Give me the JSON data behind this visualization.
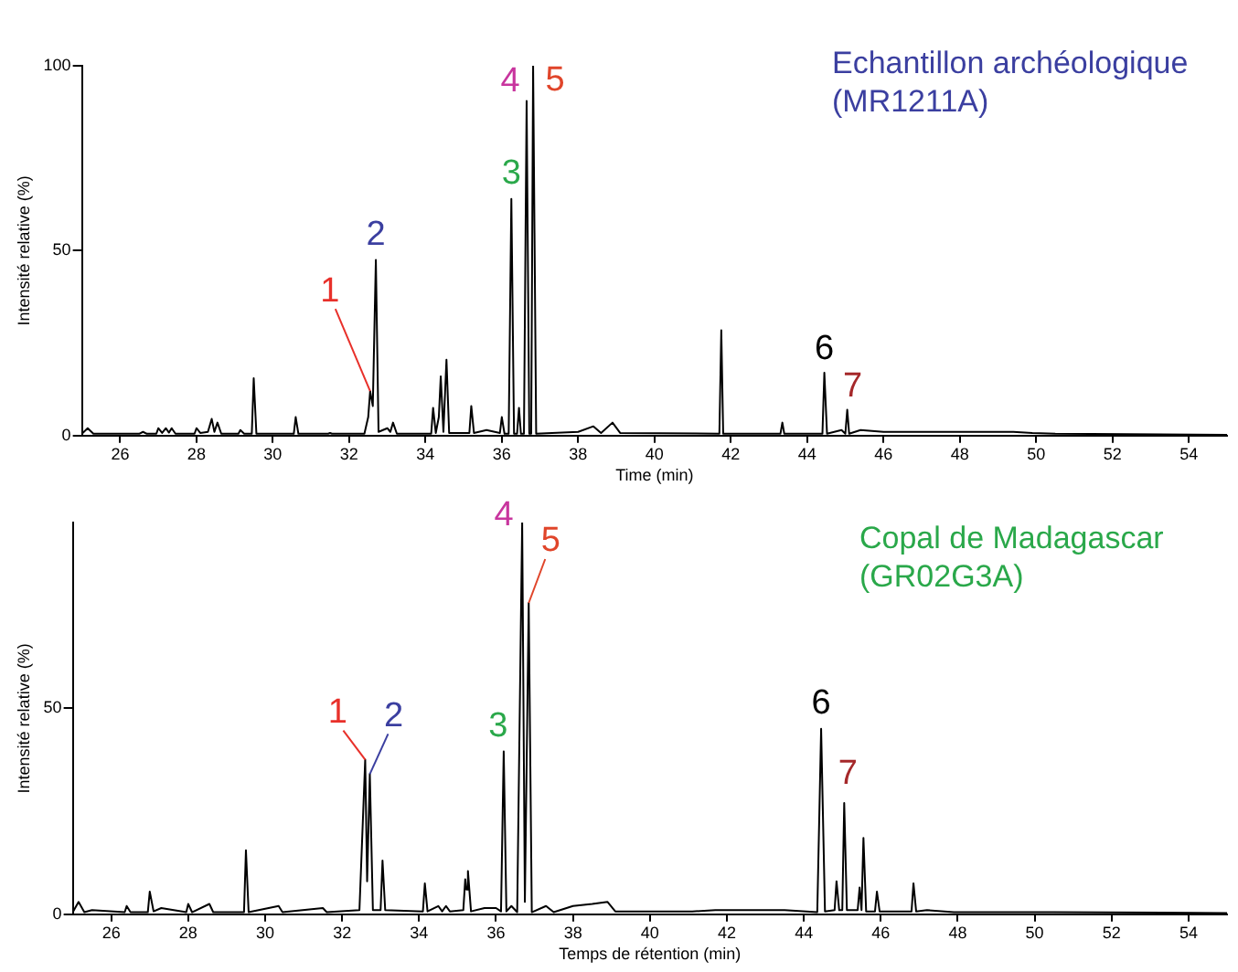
{
  "chart_data": [
    {
      "type": "line",
      "title": "Echantillon archéologique (MR1211A)",
      "xlabel": "Time (min)",
      "ylabel": "Intensité relative (%)",
      "xlim": [
        25,
        55
      ],
      "xticks": [
        26,
        28,
        30,
        32,
        34,
        36,
        38,
        40,
        42,
        44,
        46,
        48,
        50,
        52,
        54
      ],
      "ylim": [
        0,
        100
      ],
      "yticks": [
        0,
        50,
        100
      ],
      "x": [
        25.0,
        25.15,
        25.3,
        26.5,
        26.6,
        26.7,
        26.95,
        27.0,
        27.1,
        27.2,
        27.28,
        27.35,
        27.45,
        27.95,
        28.0,
        28.1,
        28.3,
        28.4,
        28.47,
        28.55,
        28.65,
        29.1,
        29.15,
        29.25,
        29.45,
        29.5,
        29.57,
        30.55,
        30.6,
        30.67,
        31.45,
        31.5,
        31.55,
        32.4,
        32.5,
        32.55,
        32.62,
        32.7,
        32.77,
        33.0,
        33.08,
        33.15,
        33.25,
        34.15,
        34.2,
        34.27,
        34.35,
        34.4,
        34.47,
        34.55,
        34.62,
        35.15,
        35.2,
        35.27,
        35.6,
        35.95,
        36.0,
        36.07,
        36.18,
        36.25,
        36.32,
        36.4,
        36.45,
        36.5,
        36.58,
        36.65,
        36.72,
        36.77,
        36.82,
        36.9,
        38.0,
        38.4,
        38.6,
        38.9,
        39.1,
        41.7,
        41.75,
        41.8,
        43.3,
        43.35,
        43.4,
        44.4,
        44.45,
        44.52,
        44.9,
        45.0,
        45.05,
        45.1,
        45.4,
        46.0,
        47.35,
        49.4,
        49.9,
        50.5,
        55.0
      ],
      "series": [
        {
          "color": "#000000",
          "values": [
            0.5,
            2,
            0.5,
            0.5,
            1,
            0.5,
            0.5,
            2,
            0.7,
            2,
            0.8,
            2,
            0.5,
            0.5,
            2,
            0.7,
            1,
            4.5,
            1,
            3.5,
            0.5,
            0.5,
            1.5,
            0.5,
            0.5,
            15.5,
            0.5,
            0.5,
            5,
            0.5,
            0.5,
            0.7,
            0.5,
            0.5,
            5,
            12,
            8,
            47.5,
            1,
            2,
            1,
            3.5,
            0.5,
            0.5,
            7.5,
            0.7,
            5,
            16,
            1,
            20.5,
            0.7,
            0.7,
            8,
            0.7,
            1.5,
            0.7,
            5,
            0.5,
            0.5,
            64,
            0.5,
            0.5,
            7.5,
            0.5,
            0.5,
            90.5,
            0.5,
            0.5,
            100,
            0.5,
            1,
            2.5,
            0.7,
            3.5,
            0.7,
            0.5,
            28.5,
            0.5,
            0.5,
            3.5,
            0.5,
            0.5,
            17,
            0.5,
            1.5,
            0.5,
            7,
            0.5,
            1.5,
            1,
            1,
            1,
            0.7,
            0.5,
            0.2
          ]
        }
      ],
      "annotations": [
        {
          "text": "1",
          "x": 32.55,
          "y": 12
        },
        {
          "text": "2",
          "x": 32.7,
          "y": 47.5
        },
        {
          "text": "3",
          "x": 36.25,
          "y": 64
        },
        {
          "text": "4",
          "x": 36.65,
          "y": 90.5
        },
        {
          "text": "5",
          "x": 36.82,
          "y": 100
        },
        {
          "text": "6",
          "x": 44.45,
          "y": 17
        },
        {
          "text": "7",
          "x": 45.05,
          "y": 7
        }
      ]
    },
    {
      "type": "line",
      "title": "Copal de Madagascar (GR02G3A)",
      "xlabel": "Temps de rétention (min)",
      "ylabel": "Intensité relative (%)",
      "xlim": [
        25,
        55
      ],
      "xticks": [
        26,
        28,
        30,
        32,
        34,
        36,
        38,
        40,
        42,
        44,
        46,
        48,
        50,
        52,
        54
      ],
      "ylim": [
        0,
        95
      ],
      "yticks": [
        0,
        50
      ],
      "x": [
        25.0,
        25.15,
        25.3,
        25.5,
        26.35,
        26.4,
        26.5,
        26.95,
        27.0,
        27.1,
        27.3,
        27.95,
        28.0,
        28.1,
        28.55,
        28.65,
        29.45,
        29.5,
        29.57,
        30.35,
        30.45,
        31.5,
        31.6,
        32.45,
        32.6,
        32.65,
        32.72,
        32.8,
        33.0,
        33.05,
        33.12,
        34.1,
        34.15,
        34.22,
        34.5,
        34.6,
        34.7,
        34.8,
        35.15,
        35.2,
        35.23,
        35.27,
        35.35,
        35.7,
        36.0,
        36.13,
        36.2,
        36.27,
        36.4,
        36.55,
        36.68,
        36.75,
        36.85,
        36.93,
        37.3,
        37.5,
        38.0,
        38.5,
        38.9,
        39.1,
        41.1,
        41.7,
        43.5,
        44.35,
        44.45,
        44.55,
        44.8,
        44.85,
        44.92,
        45.0,
        45.05,
        45.12,
        45.4,
        45.45,
        45.5,
        45.55,
        45.62,
        45.85,
        45.9,
        45.97,
        46.8,
        46.85,
        46.92,
        47.2,
        47.9,
        50.5,
        55.0
      ],
      "series": [
        {
          "color": "#000000",
          "values": [
            0.5,
            3,
            0.5,
            1,
            0.5,
            2,
            0.5,
            0.5,
            5.5,
            0.7,
            1.5,
            0.5,
            2.5,
            0.5,
            2.5,
            0.5,
            0.5,
            15.5,
            0.5,
            2,
            0.5,
            1.5,
            0.5,
            1,
            37.5,
            8,
            34,
            1,
            1,
            13,
            1,
            0.7,
            7.5,
            0.7,
            2,
            0.7,
            2,
            0.7,
            1,
            8.5,
            6,
            10.5,
            0.7,
            1.5,
            1.5,
            0.7,
            39.5,
            0.7,
            2,
            0.5,
            95,
            3,
            75.5,
            0.5,
            2,
            0.5,
            2,
            2.5,
            3,
            0.7,
            0.7,
            1,
            1,
            0.5,
            45,
            0.7,
            1,
            8,
            1,
            1,
            27,
            1,
            1,
            6.5,
            1,
            18.5,
            0.7,
            0.7,
            5.5,
            0.7,
            0.7,
            7.5,
            0.7,
            1,
            0.5,
            0.5,
            0.3
          ]
        }
      ],
      "annotations": [
        {
          "text": "1",
          "x": 32.6,
          "y": 37.5
        },
        {
          "text": "2",
          "x": 32.72,
          "y": 34
        },
        {
          "text": "3",
          "x": 36.2,
          "y": 39.5
        },
        {
          "text": "4",
          "x": 36.68,
          "y": 95
        },
        {
          "text": "5",
          "x": 36.85,
          "y": 75.5
        },
        {
          "text": "6",
          "x": 44.45,
          "y": 45
        },
        {
          "text": "7",
          "x": 45.05,
          "y": 27
        }
      ]
    }
  ]
}
